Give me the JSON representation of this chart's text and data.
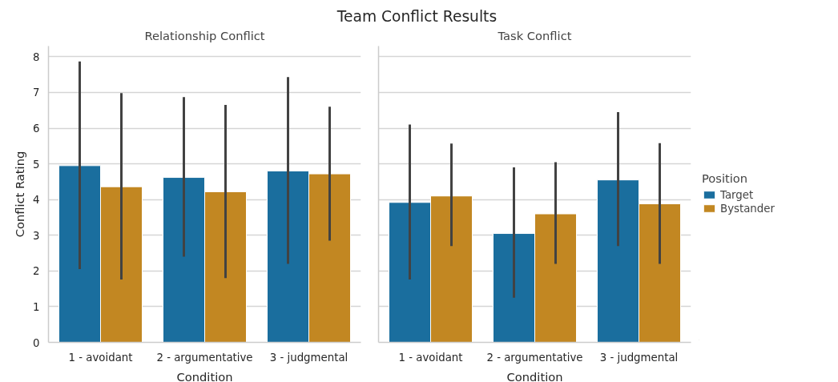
{
  "chart_data": [
    {
      "type": "bar",
      "title": "Relationship Conflict",
      "annotations": [
        "Team Conflict Results"
      ],
      "xlabel": "Condition",
      "ylabel": "Conflict Rating",
      "categories": [
        "1 - avoidant",
        "2 - argumentative",
        "3 - judgmental"
      ],
      "series": [
        {
          "color": "#1a6e9e",
          "values": [
            4.95,
            4.62,
            4.8
          ],
          "errors": [
            [
              2.05,
              7.87
            ],
            [
              2.4,
              6.87
            ],
            [
              2.2,
              7.43
            ]
          ]
        },
        {
          "color": "#c28722",
          "values": [
            4.36,
            4.22,
            4.72
          ],
          "errors": [
            [
              1.76,
              6.98
            ],
            [
              1.8,
              6.65
            ],
            [
              2.85,
              6.6
            ]
          ]
        }
      ],
      "ylim": [
        0,
        8.3
      ],
      "yticks": [
        0,
        1,
        2,
        3,
        4,
        5,
        6,
        7,
        8
      ],
      "grid": "y"
    },
    {
      "type": "bar",
      "title": "Task Conflict",
      "xlabel": "Condition",
      "legend_title": "Position",
      "categories": [
        "1 - avoidant",
        "2 - argumentative",
        "3 - judgmental"
      ],
      "series": [
        {
          "name": "Target",
          "color": "#1a6e9e",
          "values": [
            3.92,
            3.05,
            4.55
          ],
          "errors": [
            [
              1.76,
              6.1
            ],
            [
              1.25,
              4.9
            ],
            [
              2.7,
              6.45
            ]
          ]
        },
        {
          "name": "Bystander",
          "color": "#c28722",
          "values": [
            4.1,
            3.6,
            3.88
          ],
          "errors": [
            [
              2.7,
              5.57
            ],
            [
              2.2,
              5.05
            ],
            [
              2.2,
              5.58
            ]
          ]
        }
      ],
      "ylim": [
        0,
        8.3
      ],
      "yticks": [
        0,
        1,
        2,
        3,
        4,
        5,
        6,
        7,
        8
      ],
      "grid": "y",
      "legend": "right",
      "tick_labels": "x"
    }
  ]
}
